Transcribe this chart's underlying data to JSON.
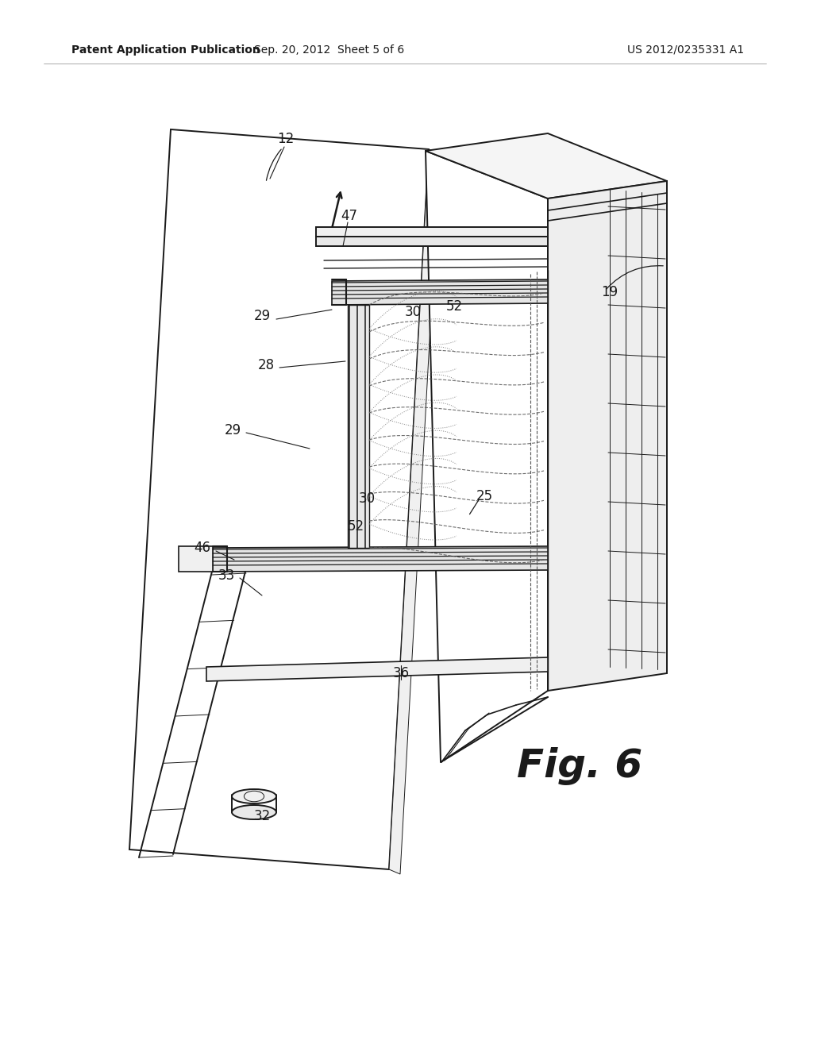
{
  "bg_color": "#ffffff",
  "lc": "#1a1a1a",
  "header_left": "Patent Application Publication",
  "header_mid": "Sep. 20, 2012  Sheet 5 of 6",
  "header_right": "US 2012/0235331 A1",
  "fig_label": "Fig. 6",
  "lw_main": 1.4,
  "lw_thin": 0.7,
  "lw_thick": 2.0,
  "fs_header": 10,
  "fs_label": 12,
  "fs_fig": 36
}
